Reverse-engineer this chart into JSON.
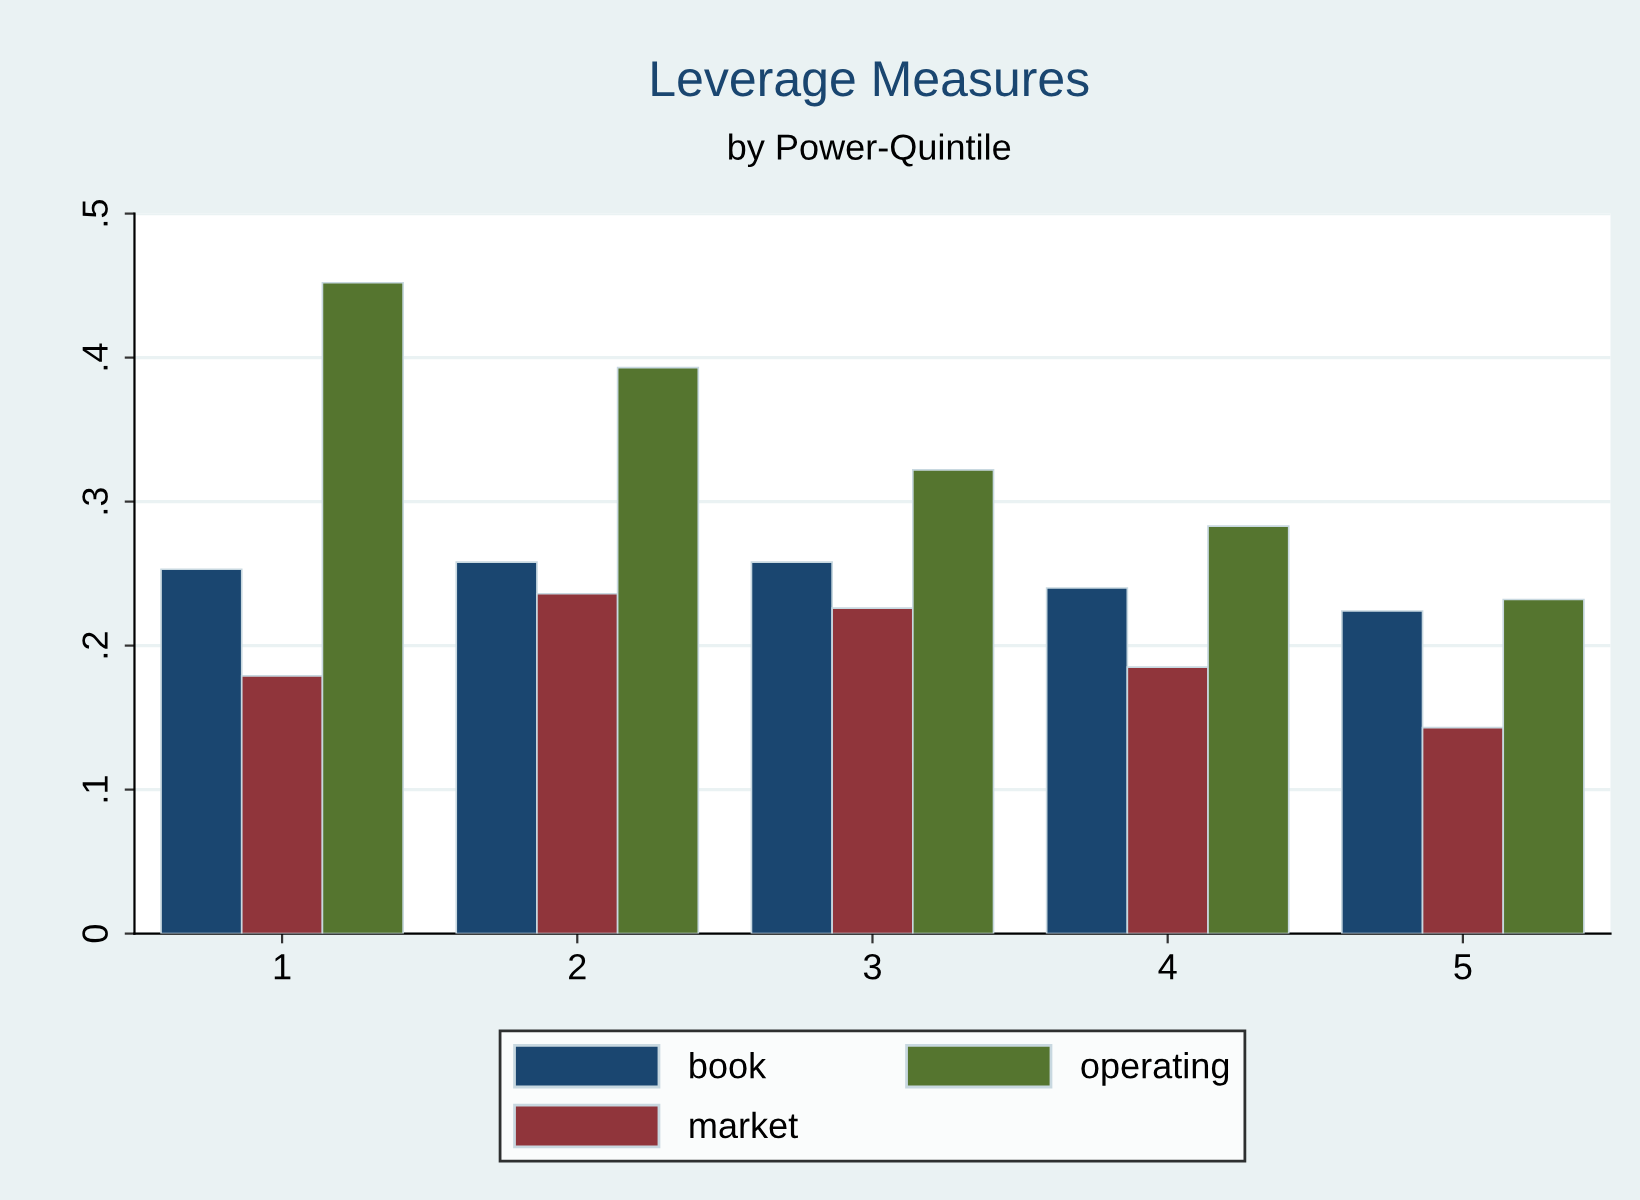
{
  "chart_data": {
    "type": "bar",
    "title": "Leverage Measures",
    "subtitle": "by Power-Quintile",
    "categories": [
      "1",
      "2",
      "3",
      "4",
      "5"
    ],
    "series": [
      {
        "name": "book",
        "color": "#1a4670",
        "values": [
          0.253,
          0.258,
          0.258,
          0.24,
          0.224
        ]
      },
      {
        "name": "market",
        "color": "#90353b",
        "values": [
          0.179,
          0.236,
          0.226,
          0.185,
          0.143
        ]
      },
      {
        "name": "operating",
        "color": "#55752f",
        "values": [
          0.452,
          0.393,
          0.322,
          0.283,
          0.232
        ]
      }
    ],
    "ylim": [
      0,
      0.5
    ],
    "yticks": [
      {
        "value": 0,
        "label": "0"
      },
      {
        "value": 0.1,
        "label": ".1"
      },
      {
        "value": 0.2,
        "label": ".2"
      },
      {
        "value": 0.3,
        "label": ".3"
      },
      {
        "value": 0.4,
        "label": ".4"
      },
      {
        "value": 0.5,
        "label": ".5"
      }
    ],
    "grid": "y",
    "legend": "bottom"
  }
}
